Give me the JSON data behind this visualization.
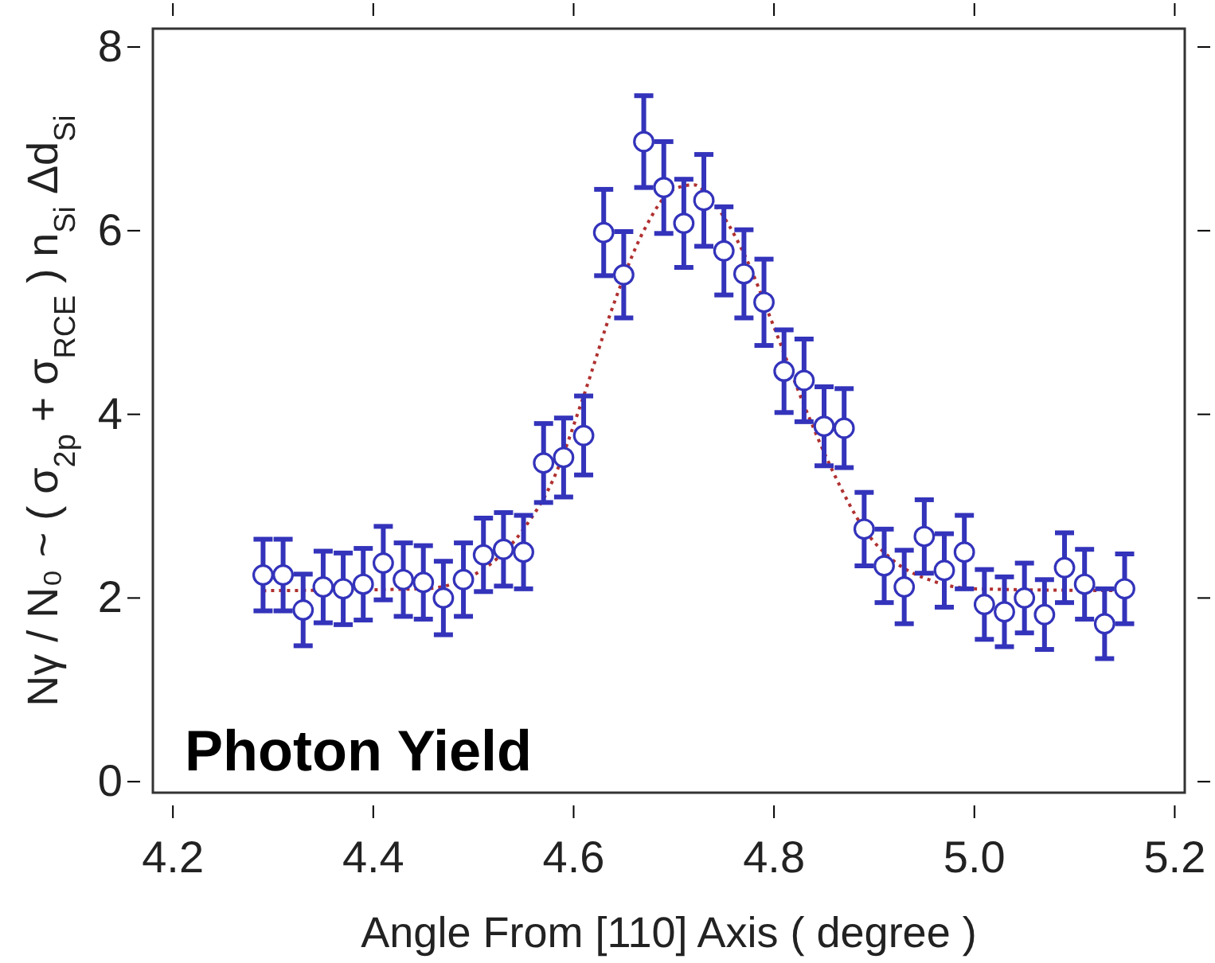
{
  "chart_data": {
    "type": "scatter",
    "xlabel": "Angle From [110] Axis ( degree )",
    "ylabel": "Nγ / N₀ ~ ( σ$_{2p}$ + σ$_{RCE}$ ) n$_{Si}$ Δd$_{Si}$",
    "annotations": [
      "Photon Yield"
    ],
    "xlim": [
      4.18,
      5.21
    ],
    "xticks": [
      {
        "value": 4.2,
        "label": "4.2"
      },
      {
        "value": 4.4,
        "label": "4.4"
      },
      {
        "value": 4.6,
        "label": "4.6"
      },
      {
        "value": 4.8,
        "label": "4.8"
      },
      {
        "value": 5.0,
        "label": "5.0"
      },
      {
        "value": 5.2,
        "label": "5.2"
      }
    ],
    "ylim": [
      -0.12,
      8.2
    ],
    "yticks": [
      0,
      2,
      4,
      6,
      8
    ],
    "grid": false,
    "series": [
      {
        "color": "#3333bb",
        "marker": "circle",
        "x": [
          4.29,
          4.31,
          4.33,
          4.35,
          4.37,
          4.39,
          4.41,
          4.43,
          4.45,
          4.47,
          4.49,
          4.51,
          4.53,
          4.55,
          4.57,
          4.59,
          4.61,
          4.63,
          4.65,
          4.67,
          4.69,
          4.71,
          4.73,
          4.75,
          4.77,
          4.79,
          4.81,
          4.83,
          4.85,
          4.87,
          4.89,
          4.91,
          4.93,
          4.95,
          4.97,
          4.99,
          5.01,
          5.03,
          5.05,
          5.07,
          5.09,
          5.11,
          5.13,
          5.15
        ],
        "values": [
          2.25,
          2.25,
          1.87,
          2.12,
          2.1,
          2.15,
          2.38,
          2.2,
          2.17,
          2.0,
          2.2,
          2.47,
          2.53,
          2.5,
          3.47,
          3.53,
          3.77,
          5.98,
          5.52,
          6.97,
          6.47,
          6.08,
          6.33,
          5.78,
          5.53,
          5.22,
          4.47,
          4.37,
          3.87,
          3.85,
          2.75,
          2.35,
          2.12,
          2.67,
          2.3,
          2.5,
          1.93,
          1.85,
          2.0,
          1.82,
          2.33,
          2.15,
          1.72,
          2.1
        ],
        "errors": [
          0.39,
          0.39,
          0.39,
          0.39,
          0.39,
          0.39,
          0.4,
          0.4,
          0.4,
          0.4,
          0.4,
          0.4,
          0.4,
          0.4,
          0.43,
          0.43,
          0.43,
          0.47,
          0.47,
          0.5,
          0.5,
          0.48,
          0.5,
          0.48,
          0.48,
          0.47,
          0.45,
          0.45,
          0.43,
          0.43,
          0.4,
          0.4,
          0.4,
          0.4,
          0.4,
          0.4,
          0.38,
          0.38,
          0.38,
          0.38,
          0.38,
          0.38,
          0.38,
          0.38
        ]
      },
      {
        "type": "line",
        "color": "#b03030",
        "line_style": "dotted",
        "marker": "none",
        "x": [
          4.29,
          4.45,
          4.5,
          4.55,
          4.58,
          4.61,
          4.64,
          4.67,
          4.7,
          4.72,
          4.74,
          4.77,
          4.8,
          4.83,
          4.86,
          4.89,
          4.92,
          4.96,
          5.0,
          5.15
        ],
        "values": [
          2.08,
          2.1,
          2.25,
          2.75,
          3.3,
          4.2,
          5.2,
          6.0,
          6.45,
          6.5,
          6.3,
          5.75,
          4.95,
          4.1,
          3.35,
          2.75,
          2.4,
          2.18,
          2.1,
          2.08
        ]
      }
    ]
  }
}
